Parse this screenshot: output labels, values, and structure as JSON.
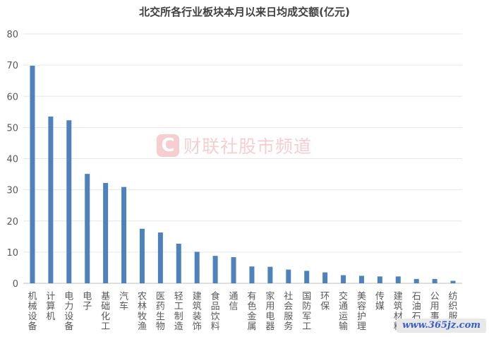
{
  "chart_data": {
    "type": "bar",
    "title": "北交所各行业板块本月以来日均成交额(亿元)",
    "ylim": [
      0,
      80
    ],
    "yticks": [
      0,
      10,
      20,
      30,
      40,
      50,
      60,
      70,
      80
    ],
    "grid": true,
    "bar_color": "#4f81bd",
    "categories": [
      "机械设备",
      "计算机",
      "电力设备",
      "电子",
      "基础化工",
      "汽车",
      "农林牧渔",
      "医药生物",
      "轻工制造",
      "建筑装饰",
      "食品饮料",
      "通信",
      "有色金属",
      "家用电器",
      "社会服务",
      "国防军工",
      "环保",
      "交通运输",
      "美容护理",
      "传媒",
      "建筑材料",
      "石油石化",
      "公用事业",
      "纺织服饰"
    ],
    "values": [
      69.8,
      53.5,
      52.3,
      35.1,
      32.2,
      30.9,
      17.5,
      16.3,
      12.7,
      10.1,
      8.8,
      8.4,
      5.4,
      5.3,
      4.4,
      4.0,
      3.5,
      2.6,
      2.4,
      2.2,
      2.2,
      1.4,
      1.4,
      0.8
    ]
  },
  "watermark": {
    "logo_letter": "C",
    "text": "财联社股市频道"
  },
  "site_tag": "www.365jz.com"
}
